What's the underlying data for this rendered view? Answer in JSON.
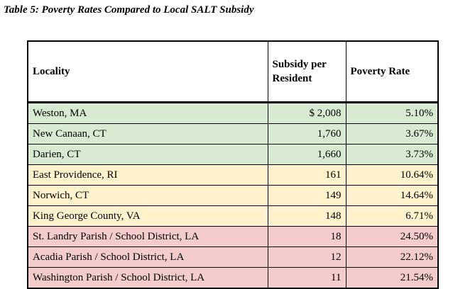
{
  "title": "Table 5: Poverty Rates Compared to Local SALT Subsidy",
  "table": {
    "headers": {
      "locality": "Locality",
      "subsidy": "Subsidy  per\nResident",
      "poverty": "Poverty Rate"
    },
    "rows": [
      {
        "locality": "Weston, MA",
        "subsidy": "$ 2,008",
        "poverty": "5.10%",
        "tier": "green"
      },
      {
        "locality": "New Canaan, CT",
        "subsidy": "1,760",
        "poverty": "3.67%",
        "tier": "green"
      },
      {
        "locality": "Darien, CT",
        "subsidy": "1,660",
        "poverty": "3.73%",
        "tier": "green"
      },
      {
        "locality": "East Providence, RI",
        "subsidy": "161",
        "poverty": "10.64%",
        "tier": "yellow"
      },
      {
        "locality": "Norwich, CT",
        "subsidy": "149",
        "poverty": "14.64%",
        "tier": "yellow"
      },
      {
        "locality": "King George County, VA",
        "subsidy": "148",
        "poverty": "6.71%",
        "tier": "yellow"
      },
      {
        "locality": "St. Landry Parish / School District, LA",
        "subsidy": "18",
        "poverty": "24.50%",
        "tier": "red"
      },
      {
        "locality": "Acadia Parish / School District, LA",
        "subsidy": "12",
        "poverty": "22.12%",
        "tier": "red"
      },
      {
        "locality": "Washington Parish / School District, LA",
        "subsidy": "11",
        "poverty": "21.54%",
        "tier": "red"
      }
    ],
    "tier_colors": {
      "green": "#d9ead3",
      "yellow": "#fff2cc",
      "red": "#f4cccc"
    }
  },
  "chart_data": {
    "type": "table",
    "title": "Table 5: Poverty Rates Compared to Local SALT Subsidy",
    "columns": [
      "Locality",
      "Subsidy per Resident",
      "Poverty Rate"
    ],
    "rows": [
      [
        "Weston, MA",
        2008,
        "5.10%"
      ],
      [
        "New Canaan, CT",
        1760,
        "3.67%"
      ],
      [
        "Darien, CT",
        1660,
        "3.73%"
      ],
      [
        "East Providence, RI",
        161,
        "10.64%"
      ],
      [
        "Norwich, CT",
        149,
        "14.64%"
      ],
      [
        "King George County, VA",
        148,
        "6.71%"
      ],
      [
        "St. Landry Parish / School District, LA",
        18,
        "24.50%"
      ],
      [
        "Acadia Parish / School District, LA",
        12,
        "22.12%"
      ],
      [
        "Washington Parish / School District, LA",
        11,
        "21.54%"
      ]
    ]
  }
}
